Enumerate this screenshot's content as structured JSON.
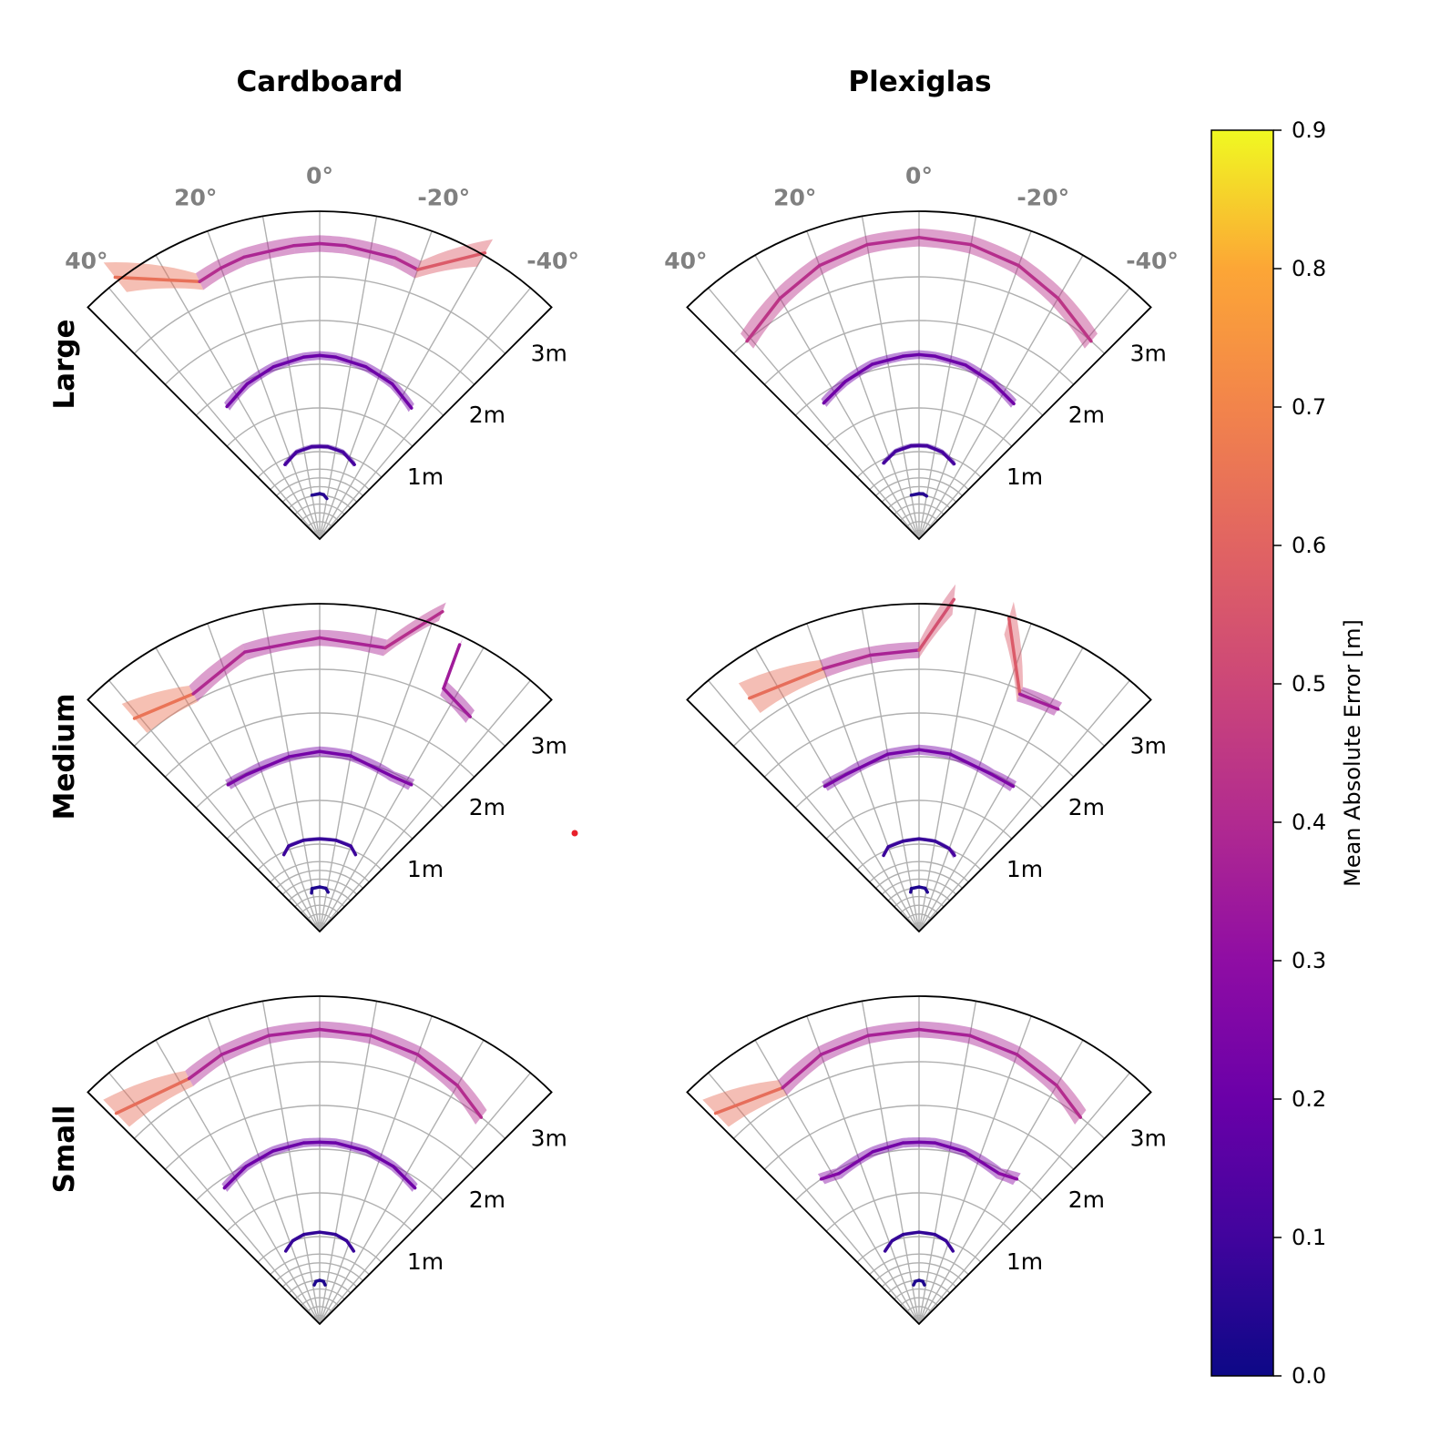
{
  "figure": {
    "col_titles": [
      "Cardboard",
      "Plexiglas"
    ],
    "row_titles": [
      "Large",
      "Medium",
      "Small"
    ]
  },
  "axes_common": {
    "theta_ticks": [
      40,
      20,
      0,
      -20,
      -40
    ],
    "theta_tick_labels": [
      "40°",
      "20°",
      "0°",
      "-20°",
      "-40°"
    ],
    "radius_ticks": [
      1,
      2,
      3
    ],
    "radius_tick_labels": [
      "1m",
      "2m",
      "3m"
    ],
    "theta_range_deg": [
      -45,
      45
    ],
    "r_max": 3.75,
    "angular_gridlines_deg": [
      -40,
      -30,
      -20,
      -10,
      0,
      10,
      20,
      30,
      40
    ],
    "radial_gridlines_m": [
      0.1,
      0.2,
      0.3,
      0.4,
      0.5,
      0.6,
      0.7,
      0.8,
      1,
      1.5,
      2,
      2.5,
      3
    ]
  },
  "colorbar": {
    "label": "Mean Absolute Error [m]",
    "colormap": "plasma",
    "range": [
      0,
      0.9
    ],
    "ticks": [
      "0.0",
      "0.1",
      "0.2",
      "0.3",
      "0.4",
      "0.5",
      "0.6",
      "0.7",
      "0.8",
      "0.9"
    ]
  },
  "chart_data": [
    {
      "type": "line",
      "material": "Cardboard",
      "size": "Large",
      "series": [
        {
          "true_distance": 0.5,
          "theta": [
            10,
            0,
            -5,
            -10
          ],
          "distance": [
            0.51,
            0.52,
            0.51,
            0.47
          ],
          "mae": [
            0.05,
            0.04,
            0.05,
            0.06
          ]
        },
        {
          "true_distance": 1.0,
          "theta": [
            25,
            15,
            5,
            0,
            -5,
            -15,
            -25
          ],
          "distance": [
            0.94,
            1.03,
            1.06,
            1.06,
            1.06,
            1.03,
            0.94
          ],
          "mae": [
            0.12,
            0.11,
            0.11,
            0.11,
            0.11,
            0.11,
            0.12
          ]
        },
        {
          "true_distance": 2.0,
          "theta": [
            35,
            25,
            15,
            5,
            0,
            -5,
            -15,
            -25,
            -35
          ],
          "distance": [
            1.85,
            1.96,
            2.04,
            2.09,
            2.1,
            2.09,
            2.04,
            1.96,
            1.83
          ],
          "mae": [
            0.22,
            0.21,
            0.21,
            0.2,
            0.2,
            0.2,
            0.21,
            0.21,
            0.22
          ]
        },
        {
          "true_distance": 3.0,
          "theta": [
            38,
            25,
            20,
            15,
            5,
            0,
            -5,
            -15,
            -20,
            -30
          ],
          "distance": [
            3.8,
            3.25,
            3.3,
            3.34,
            3.37,
            3.38,
            3.37,
            3.33,
            3.28,
            3.78
          ],
          "mae": [
            0.86,
            0.42,
            0.4,
            0.39,
            0.38,
            0.38,
            0.38,
            0.39,
            0.42,
            0.72
          ]
        }
      ]
    },
    {
      "type": "line",
      "material": "Plexiglas",
      "size": "Large",
      "series": [
        {
          "true_distance": 0.5,
          "theta": [
            10,
            0,
            -5,
            -10
          ],
          "distance": [
            0.51,
            0.52,
            0.52,
            0.5
          ],
          "mae": [
            0.05,
            0.04,
            0.05,
            0.05
          ]
        },
        {
          "true_distance": 1.0,
          "theta": [
            25,
            15,
            5,
            0,
            -5,
            -15,
            -25
          ],
          "distance": [
            0.96,
            1.04,
            1.07,
            1.07,
            1.07,
            1.03,
            0.95
          ],
          "mae": [
            0.11,
            0.11,
            0.11,
            0.11,
            0.11,
            0.11,
            0.12
          ]
        },
        {
          "true_distance": 2.0,
          "theta": [
            35,
            25,
            15,
            5,
            0,
            -5,
            -15,
            -25,
            -35
          ],
          "distance": [
            1.9,
            1.99,
            2.07,
            2.1,
            2.11,
            2.1,
            2.06,
            1.98,
            1.89
          ],
          "mae": [
            0.22,
            0.21,
            0.21,
            0.2,
            0.2,
            0.2,
            0.21,
            0.21,
            0.22
          ]
        },
        {
          "true_distance": 3.0,
          "theta": [
            41,
            30,
            20,
            10,
            0,
            -10,
            -20,
            -30,
            -41
          ],
          "distance": [
            3.0,
            3.18,
            3.33,
            3.42,
            3.45,
            3.42,
            3.33,
            3.18,
            3.0
          ],
          "mae": [
            0.45,
            0.43,
            0.42,
            0.41,
            0.41,
            0.41,
            0.42,
            0.43,
            0.45
          ]
        }
      ]
    },
    {
      "type": "line",
      "material": "Cardboard",
      "size": "Medium",
      "series": [
        {
          "true_distance": 0.5,
          "theta": [
            12,
            10,
            0,
            -8,
            -12
          ],
          "distance": [
            0.45,
            0.5,
            0.51,
            0.5,
            0.46
          ],
          "mae": [
            0.04,
            0.04,
            0.03,
            0.04,
            0.04
          ]
        },
        {
          "true_distance": 1.0,
          "theta": [
            25,
            20,
            10,
            0,
            -10,
            -20,
            -25
          ],
          "distance": [
            0.97,
            1.04,
            1.06,
            1.06,
            1.06,
            1.04,
            0.97
          ],
          "mae": [
            0.09,
            0.09,
            0.08,
            0.08,
            0.08,
            0.09,
            0.09
          ]
        },
        {
          "true_distance": 2.0,
          "theta": [
            32,
            25,
            10,
            0,
            -10,
            -25,
            -32
          ],
          "distance": [
            1.98,
            1.98,
            2.03,
            2.06,
            2.04,
            1.96,
            1.98
          ],
          "mae": [
            0.25,
            0.24,
            0.23,
            0.23,
            0.23,
            0.24,
            0.28
          ]
        },
        {
          "true_distance": 3.0,
          "theta": [
            41,
            28,
            15,
            0,
            -13,
            -21
          ],
          "distance": [
            3.23,
            3.08,
            3.31,
            3.36,
            3.33,
            3.92
          ],
          "mae": [
            0.88,
            0.42,
            0.38,
            0.37,
            0.38,
            0.45
          ]
        },
        {
          "true_distance": 3.0,
          "theta": [
            -26,
            -27,
            -35
          ],
          "distance": [
            3.65,
            3.12,
            3.0
          ],
          "mae": [
            0.35,
            0.35,
            0.35
          ]
        }
      ]
    },
    {
      "type": "line",
      "material": "Plexiglas",
      "size": "Medium",
      "series": [
        {
          "true_distance": 0.5,
          "theta": [
            12,
            10,
            0,
            -8,
            -12
          ],
          "distance": [
            0.46,
            0.5,
            0.51,
            0.5,
            0.46
          ],
          "mae": [
            0.04,
            0.04,
            0.03,
            0.04,
            0.04
          ]
        },
        {
          "true_distance": 1.0,
          "theta": [
            25,
            20,
            10,
            0,
            -10,
            -20,
            -25
          ],
          "distance": [
            0.96,
            1.03,
            1.05,
            1.06,
            1.05,
            1.01,
            0.96
          ],
          "mae": [
            0.09,
            0.09,
            0.08,
            0.08,
            0.08,
            0.09,
            0.15
          ]
        },
        {
          "true_distance": 2.0,
          "theta": [
            33,
            25,
            10,
            0,
            -10,
            -25,
            -33
          ],
          "distance": [
            1.98,
            1.98,
            2.06,
            2.08,
            2.06,
            1.98,
            1.98
          ],
          "mae": [
            0.25,
            0.24,
            0.23,
            0.23,
            0.23,
            0.24,
            0.27
          ]
        },
        {
          "true_distance": 3.0,
          "theta": [
            36,
            20,
            10,
            0,
            -6
          ],
          "distance": [
            3.3,
            3.2,
            3.21,
            3.22,
            3.82
          ],
          "mae": [
            0.84,
            0.42,
            0.38,
            0.37,
            0.7
          ]
        },
        {
          "true_distance": 3.0,
          "theta": [
            -16,
            -23,
            -32
          ],
          "distance": [
            3.73,
            2.95,
            3.0
          ],
          "mae": [
            0.78,
            0.36,
            0.35
          ]
        }
      ]
    },
    {
      "type": "line",
      "material": "Cardboard",
      "size": "Small",
      "series": [
        {
          "true_distance": 0.5,
          "theta": [
            8,
            5,
            0,
            -5,
            -8
          ],
          "distance": [
            0.45,
            0.49,
            0.5,
            0.49,
            0.45
          ],
          "mae": [
            0.04,
            0.03,
            0.03,
            0.03,
            0.04
          ]
        },
        {
          "true_distance": 1.0,
          "theta": [
            25,
            18,
            10,
            0,
            -10,
            -18,
            -25
          ],
          "distance": [
            0.92,
            1.0,
            1.04,
            1.05,
            1.04,
            1.0,
            0.92
          ],
          "mae": [
            0.09,
            0.08,
            0.07,
            0.07,
            0.07,
            0.08,
            0.09
          ]
        },
        {
          "true_distance": 2.0,
          "theta": [
            35,
            25,
            15,
            5,
            0,
            -5,
            -15,
            -25,
            -35
          ],
          "distance": [
            1.9,
            1.99,
            2.05,
            2.08,
            2.08,
            2.08,
            2.05,
            1.99,
            1.9
          ],
          "mae": [
            0.22,
            0.21,
            0.21,
            0.2,
            0.2,
            0.2,
            0.21,
            0.21,
            0.22
          ]
        },
        {
          "true_distance": 3.0,
          "theta": [
            44,
            28,
            20,
            10,
            0,
            -10,
            -20,
            -30,
            -38
          ],
          "distance": [
            3.35,
            3.18,
            3.28,
            3.35,
            3.37,
            3.35,
            3.28,
            3.15,
            3.0
          ],
          "mae": [
            0.86,
            0.4,
            0.38,
            0.37,
            0.37,
            0.37,
            0.38,
            0.4,
            0.42
          ]
        }
      ]
    },
    {
      "type": "line",
      "material": "Plexiglas",
      "size": "Small",
      "series": [
        {
          "true_distance": 0.5,
          "theta": [
            8,
            5,
            0,
            -5,
            -8
          ],
          "distance": [
            0.45,
            0.49,
            0.5,
            0.49,
            0.45
          ],
          "mae": [
            0.04,
            0.03,
            0.03,
            0.03,
            0.04
          ]
        },
        {
          "true_distance": 1.0,
          "theta": [
            25,
            18,
            10,
            0,
            -10,
            -18,
            -25
          ],
          "distance": [
            0.92,
            1.0,
            1.04,
            1.05,
            1.04,
            1.0,
            0.92
          ],
          "mae": [
            0.09,
            0.08,
            0.07,
            0.07,
            0.07,
            0.08,
            0.09
          ]
        },
        {
          "true_distance": 2.0,
          "theta": [
            34,
            28,
            15,
            5,
            0,
            -5,
            -15,
            -28,
            -34
          ],
          "distance": [
            2.0,
            1.95,
            2.04,
            2.08,
            2.08,
            2.08,
            2.04,
            1.95,
            2.0
          ],
          "mae": [
            0.28,
            0.26,
            0.23,
            0.22,
            0.22,
            0.22,
            0.23,
            0.26,
            0.32
          ]
        },
        {
          "true_distance": 3.0,
          "theta": [
            44,
            30,
            20,
            10,
            0,
            -10,
            -20,
            -30,
            -38
          ],
          "distance": [
            3.35,
            3.12,
            3.28,
            3.35,
            3.37,
            3.35,
            3.28,
            3.15,
            3.0
          ],
          "mae": [
            0.86,
            0.4,
            0.38,
            0.37,
            0.37,
            0.37,
            0.38,
            0.4,
            0.42
          ]
        }
      ]
    }
  ]
}
